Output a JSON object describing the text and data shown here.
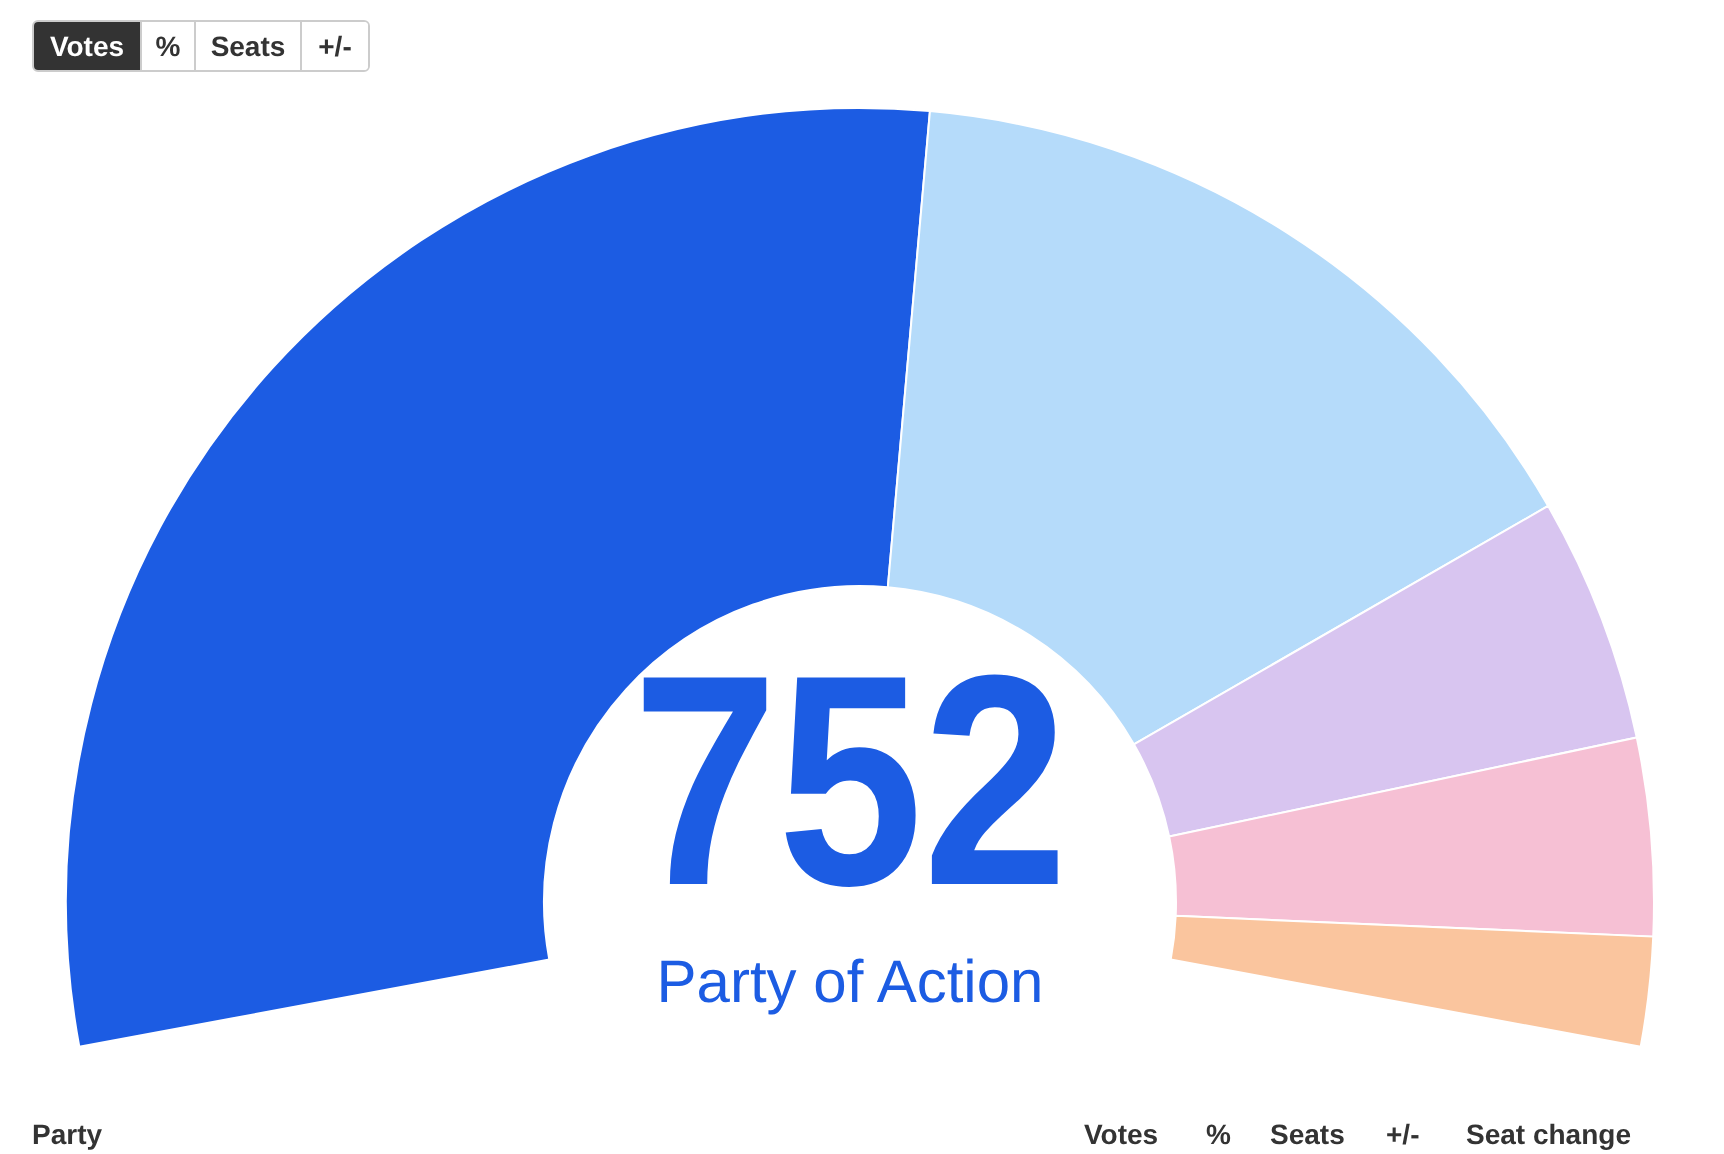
{
  "chart_data": {
    "type": "donut",
    "categories": [
      "Party of Action",
      null,
      null,
      null,
      null
    ],
    "values": [
      752,
      392,
      128,
      103,
      57
    ],
    "colors": [
      "#1c5ce3",
      "#b5dbfa",
      "#d8c5f0",
      "#f6c0d4",
      "#fac59e"
    ],
    "value_labels": [
      "752",
      null,
      null,
      null,
      null
    ],
    "annotations": [
      "Votes",
      "%",
      "Seats",
      "+/-",
      "Party",
      "Votes",
      "%",
      "Seats",
      "+/-",
      "Seat change"
    ]
  }
}
